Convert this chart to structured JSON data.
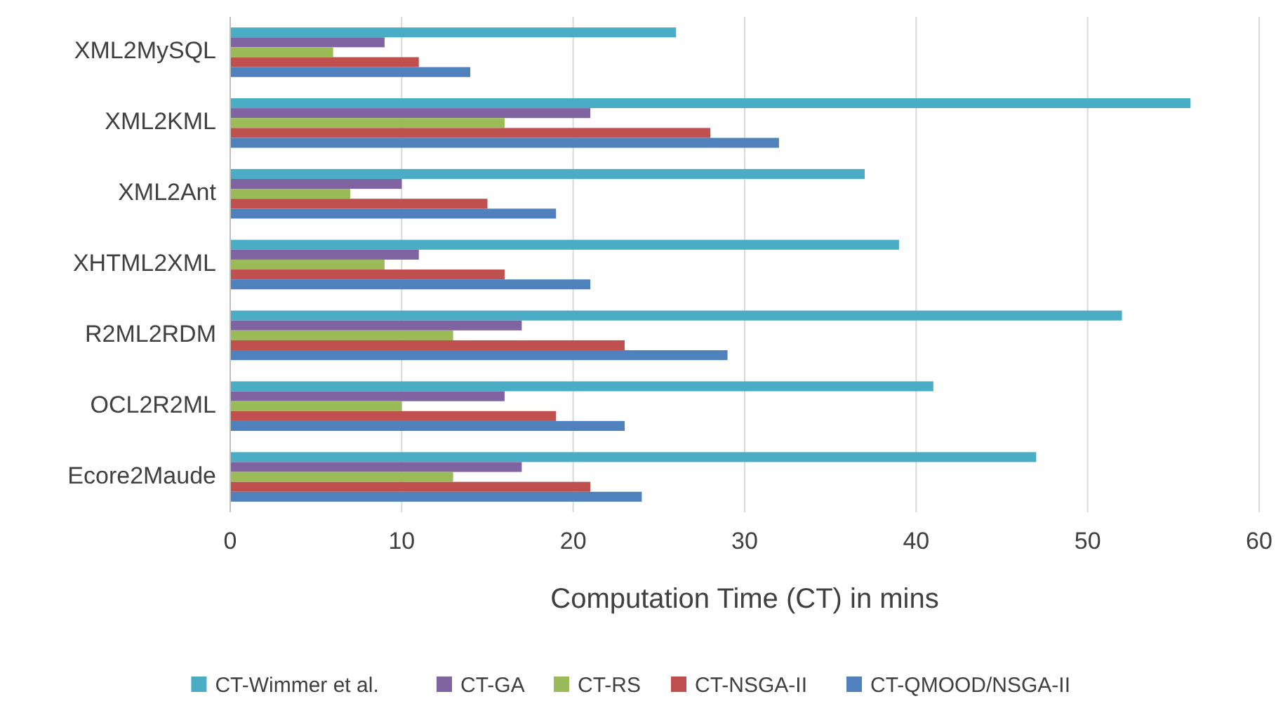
{
  "chart_data": {
    "type": "bar",
    "orientation": "horizontal",
    "xlabel": "Computation Time (CT) in mins",
    "categories": [
      "XML2MySQL",
      "XML2KML",
      "XML2Ant",
      "XHTML2XML",
      "R2ML2RDM",
      "OCL2R2ML",
      "Ecore2Maude"
    ],
    "series": [
      {
        "name": "CT-Wimmer et al.",
        "color": "#4bacc6",
        "values": [
          26,
          56,
          37,
          39,
          52,
          41,
          47
        ]
      },
      {
        "name": "CT-GA",
        "color": "#8064a2",
        "values": [
          9,
          21,
          10,
          11,
          17,
          16,
          17
        ]
      },
      {
        "name": "CT-RS",
        "color": "#9bbb59",
        "values": [
          6,
          16,
          7,
          9,
          13,
          10,
          13
        ]
      },
      {
        "name": "CT-NSGA-II",
        "color": "#c0504d",
        "values": [
          11,
          28,
          15,
          16,
          23,
          19,
          21
        ]
      },
      {
        "name": "CT-QMOOD/NSGA-II",
        "color": "#4f81bd",
        "values": [
          14,
          32,
          19,
          21,
          29,
          23,
          24
        ]
      }
    ],
    "xlim": [
      0,
      60
    ],
    "xticks": [
      0,
      10,
      20,
      30,
      40,
      50,
      60
    ],
    "grid": "x",
    "legend": "bottom"
  }
}
